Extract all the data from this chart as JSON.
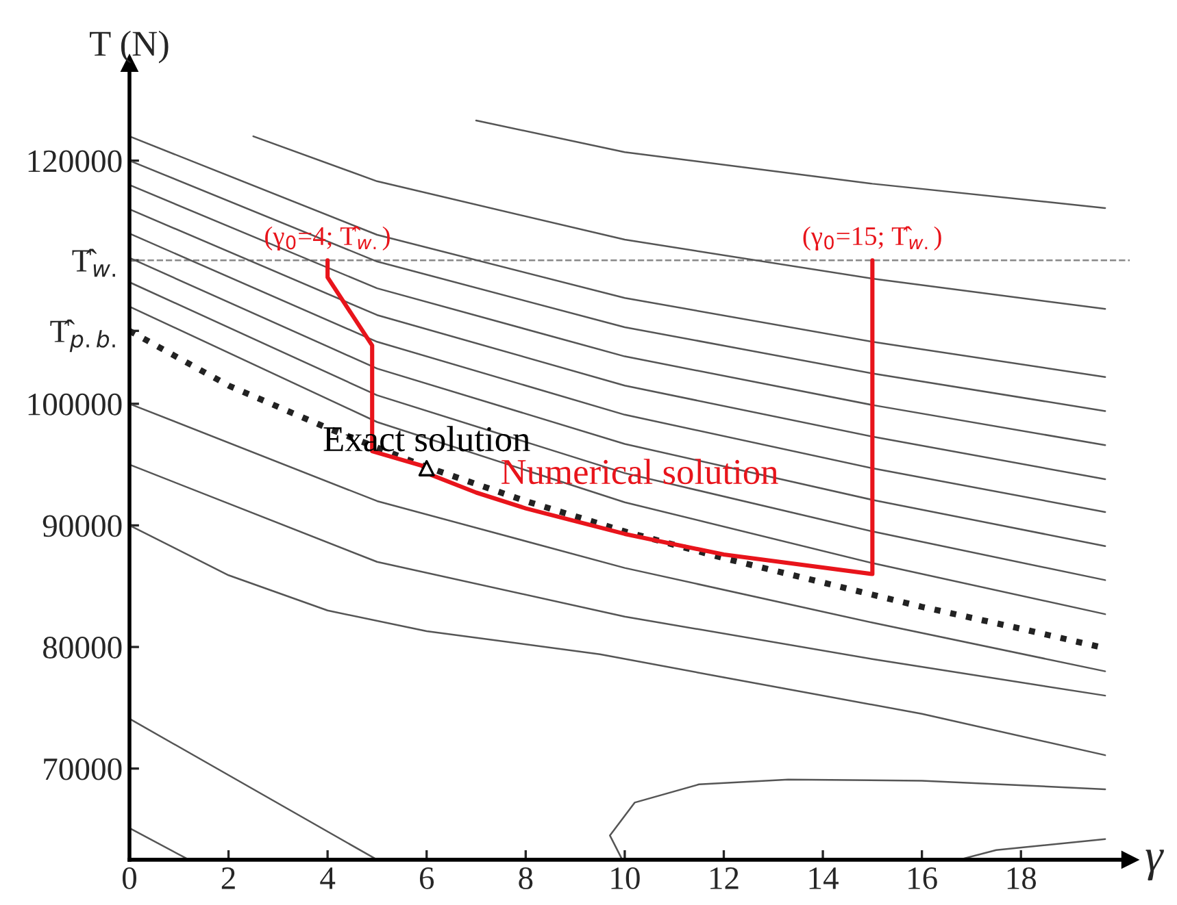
{
  "chart_data": {
    "type": "line",
    "xlabel": "γ",
    "ylabel": "T (N)",
    "xlim": [
      0,
      20.2
    ],
    "xticks": [
      0,
      2,
      4,
      6,
      8,
      10,
      12,
      14,
      16,
      18
    ],
    "ylim": [
      62500,
      128000
    ],
    "yticks": [
      70000,
      80000,
      90000,
      100000,
      {
        "value": 106000,
        "label": "T̂$_{p.b.}$"
      },
      {
        "value": 111800,
        "label": "T̂$_{w.}$"
      },
      120000
    ],
    "grid": false,
    "legend": false,
    "ref_lines": [
      {
        "axis": "y",
        "value": 111800,
        "color": "#888888",
        "line_style": "dashed"
      }
    ],
    "series": [
      {
        "color": "#555555",
        "x": [
          0,
          5,
          10,
          15,
          19.7
        ],
        "values": [
          108000,
          98500,
          91900,
          86900,
          82700
        ]
      },
      {
        "color": "#555555",
        "x": [
          0,
          5,
          10,
          15,
          19.7
        ],
        "values": [
          110000,
          100700,
          94300,
          89500,
          85500
        ]
      },
      {
        "color": "#555555",
        "x": [
          0,
          5,
          10,
          15,
          19.7
        ],
        "values": [
          112000,
          102900,
          96700,
          92100,
          88300
        ]
      },
      {
        "color": "#555555",
        "x": [
          0,
          5,
          10,
          15,
          19.7
        ],
        "values": [
          114000,
          105100,
          99100,
          94700,
          91100
        ]
      },
      {
        "color": "#555555",
        "x": [
          0,
          5,
          10,
          15,
          19.7
        ],
        "values": [
          116000,
          107300,
          101500,
          97300,
          93800
        ]
      },
      {
        "color": "#555555",
        "x": [
          0,
          5,
          10,
          15,
          19.7
        ],
        "values": [
          118000,
          109500,
          103900,
          99900,
          96600
        ]
      },
      {
        "color": "#555555",
        "x": [
          0,
          5,
          10,
          15,
          19.7
        ],
        "values": [
          120000,
          111700,
          106300,
          102500,
          99400
        ]
      },
      {
        "color": "#555555",
        "x": [
          0,
          5,
          10,
          15,
          19.7
        ],
        "values": [
          122000,
          113900,
          108700,
          105100,
          102200
        ]
      },
      {
        "color": "#555555",
        "x": [
          2.5,
          5,
          10,
          15,
          19.7
        ],
        "values": [
          122000,
          118300,
          113500,
          110300,
          107800
        ]
      },
      {
        "color": "#555555",
        "x": [
          7,
          10,
          15,
          19.7
        ],
        "values": [
          123300,
          120700,
          118100,
          116100
        ]
      },
      {
        "color": "#555555",
        "x": [
          0,
          5,
          10,
          15,
          19.7
        ],
        "values": [
          100000,
          92000,
          86500,
          82000,
          78000
        ]
      },
      {
        "color": "#555555",
        "x": [
          0,
          5,
          10,
          15,
          19.7
        ],
        "values": [
          95000,
          87000,
          82500,
          79000,
          76000
        ]
      },
      {
        "color": "#555555",
        "x": [
          0,
          2,
          4,
          6,
          9.5,
          12,
          16,
          19.7
        ],
        "values": [
          90000,
          85900,
          83000,
          81300,
          79400,
          77500,
          74500,
          71100
        ]
      },
      {
        "color": "#555555",
        "x": [
          0,
          5
        ],
        "values": [
          74100,
          62500
        ]
      },
      {
        "color": "#555555",
        "x": [
          0,
          1.2
        ],
        "values": [
          65100,
          62500
        ]
      },
      {
        "color": "#555555",
        "x": [
          9.95,
          9.7,
          10.2,
          11.5,
          13.3,
          16,
          19.7
        ],
        "values": [
          62500,
          64500,
          67200,
          68700,
          69100,
          69000,
          68300
        ]
      },
      {
        "color": "#555555",
        "x": [
          16.75,
          17.5,
          19.7
        ],
        "values": [
          62500,
          63300,
          64200
        ]
      },
      {
        "color": "#222222",
        "line_style": "dotted",
        "x": [
          0,
          2,
          4,
          6,
          8,
          10,
          12,
          14,
          16,
          18,
          19.7
        ],
        "values": [
          106000,
          101500,
          98000,
          94800,
          92000,
          89500,
          87300,
          85300,
          83300,
          81500,
          79900
        ]
      },
      {
        "color": "#e8141b",
        "x": [
          4,
          4,
          4.9,
          4.9,
          6,
          null,
          15,
          15,
          12,
          10,
          8,
          7,
          6
        ],
        "values": [
          111800,
          110400,
          104800,
          96100,
          94800,
          null,
          111800,
          86000,
          87600,
          89300,
          91400,
          92700,
          94300
        ]
      },
      {
        "type": "scatter",
        "color": "#ffffff",
        "marker": "triangle",
        "x": [
          6
        ],
        "values": [
          94700
        ]
      }
    ],
    "annotations": [
      {
        "text": "(γ$_{0}$=4; T̂$_{w.}$)",
        "x": 4,
        "y": 111800
      },
      {
        "text": "(γ$_{0}$=15; T̂$_{w.}$)",
        "x": 15,
        "y": 111800
      },
      {
        "text": "Exact solution",
        "x": 6,
        "y": 94700
      },
      {
        "text": "Numerical solution",
        "x": 10.3,
        "y": 92000
      }
    ]
  }
}
